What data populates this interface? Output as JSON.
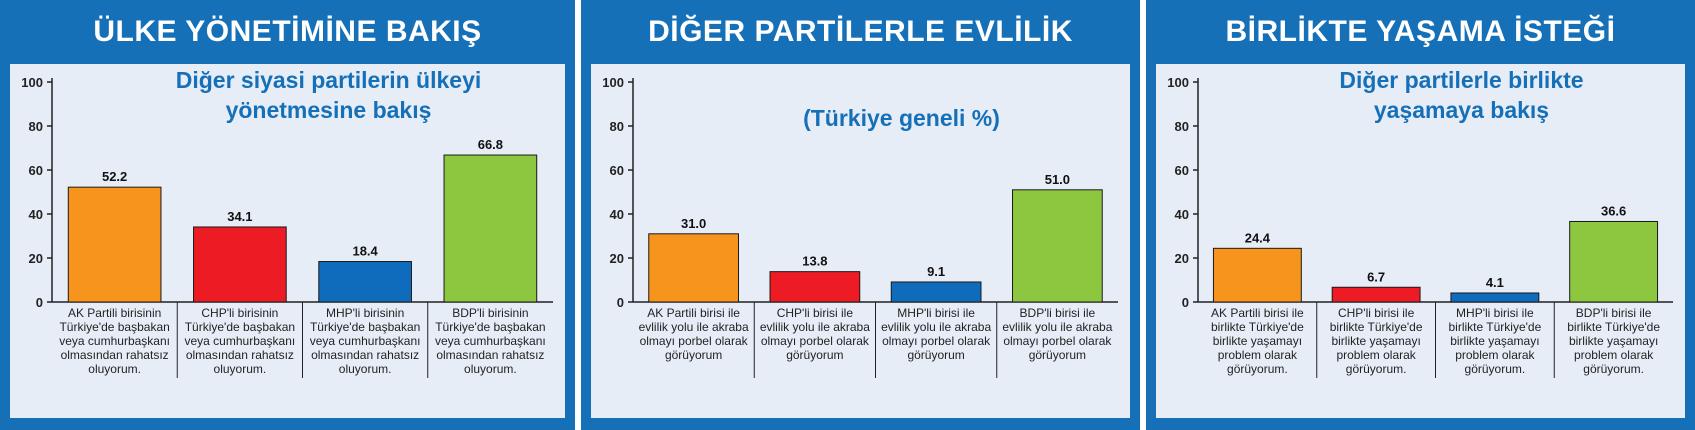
{
  "colors": {
    "frame": "#1670b8",
    "plot_bg": "#e7edf7",
    "subtitle": "#1670b8",
    "bar_colors": [
      "#f7941d",
      "#ed1c24",
      "#0f6cbd",
      "#8dc63f"
    ]
  },
  "chart_data": [
    {
      "type": "bar",
      "title": "ÜLKE YÖNETİMİNE BAKIŞ",
      "subtitle": [
        "Diğer siyasi partilerin ülkeyi",
        "yönetmesine bakış"
      ],
      "categories": [
        [
          "AK Partili birisinin",
          "Türkiye'de başbakan",
          "veya cumhurbaşkanı",
          "olmasından rahatsız",
          "oluyorum."
        ],
        [
          "CHP'li birisinin",
          "Türkiye'de başbakan",
          "veya cumhurbaşkanı",
          "olmasından rahatsız",
          "oluyorum."
        ],
        [
          "MHP'li birisinin",
          "Türkiye'de başbakan",
          "veya cumhurbaşkanı",
          "olmasından rahatsız",
          "oluyorum."
        ],
        [
          "BDP'li birisinin",
          "Türkiye'de başbakan",
          "veya cumhurbaşkanı",
          "olmasından rahatsız",
          "oluyorum."
        ]
      ],
      "values": [
        52.2,
        34.1,
        18.4,
        66.8
      ],
      "value_labels": [
        "52.2",
        "34.1",
        "18.4",
        "66.8"
      ],
      "yticks": [
        "0",
        "20",
        "40",
        "60",
        "80",
        "100"
      ],
      "ylim": [
        0,
        100
      ],
      "grid": false,
      "legend": false
    },
    {
      "type": "bar",
      "title": "DİĞER PARTİLERLE EVLİLİK",
      "subtitle": [
        "(Türkiye geneli %)"
      ],
      "categories": [
        [
          "AK Partili birisi ile",
          "evlilik yolu ile akraba",
          "olmayı porbel olarak",
          "görüyorum"
        ],
        [
          "CHP'li birisi ile",
          "evlilik yolu ile akraba",
          "olmayı porbel olarak",
          "görüyorum"
        ],
        [
          "MHP'li  birisi ile",
          "evlilik yolu ile akraba",
          "olmayı porbel olarak",
          "görüyorum"
        ],
        [
          "BDP'li  birisi ile",
          "evlilik yolu ile akraba",
          "olmayı porbel olarak",
          "görüyorum"
        ]
      ],
      "values": [
        31.0,
        13.8,
        9.1,
        51.0
      ],
      "value_labels": [
        "31.0",
        "13.8",
        "9.1",
        "51.0"
      ],
      "yticks": [
        "0",
        "20",
        "40",
        "60",
        "80",
        "100"
      ],
      "ylim": [
        0,
        100
      ],
      "grid": false,
      "legend": false
    },
    {
      "type": "bar",
      "title": "BİRLİKTE YAŞAMA İSTEĞİ",
      "subtitle": [
        "Diğer partilerle birlikte",
        "yaşamaya bakış"
      ],
      "categories": [
        [
          "AK Partili birisi ile",
          "birlikte Türkiye'de",
          "birlikte yaşamayı",
          "problem olarak",
          "görüyorum."
        ],
        [
          "CHP'li birisi ile",
          "birlikte Türkiye'de",
          "birlikte yaşamayı",
          "problem olarak",
          "görüyorum."
        ],
        [
          "MHP'li birisi ile",
          "birlikte Türkiye'de",
          "birlikte yaşamayı",
          "problem olarak",
          "görüyorum."
        ],
        [
          "BDP'li birisi ile",
          "birlikte Türkiye'de",
          "birlikte yaşamayı",
          "problem olarak",
          "görüyorum."
        ]
      ],
      "values": [
        24.4,
        6.7,
        4.1,
        36.6
      ],
      "value_labels": [
        "24.4",
        "6.7",
        "4.1",
        "36.6"
      ],
      "yticks": [
        "0",
        "20",
        "40",
        "60",
        "80",
        "100"
      ],
      "ylim": [
        0,
        100
      ],
      "grid": false,
      "legend": false
    }
  ]
}
